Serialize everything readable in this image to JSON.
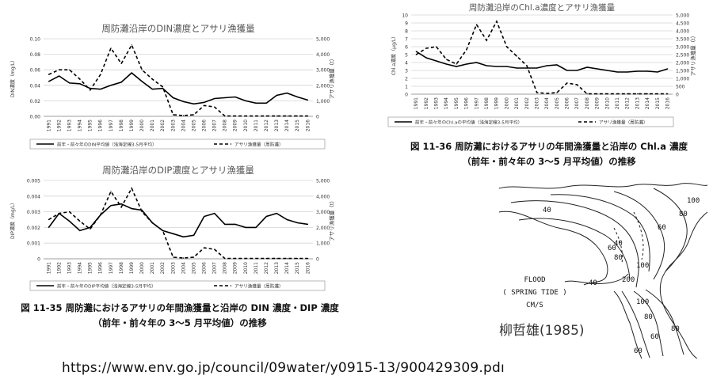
{
  "charts": [
    {
      "id": "din",
      "title": "周防灘沿岸のDIN濃度とアサリ漁獲量",
      "ylabel_left": "DIN濃度（mg/L）",
      "ylabel_right": "アサリ漁獲量（t）",
      "legend_left": "前年・前々年のDIN平均値（浅海定線3-5月平均）",
      "legend_right": "アサリ漁獲量（周防灘）",
      "yticks_left": [
        "0.00",
        "0.02",
        "0.04",
        "0.06",
        "0.08",
        "0.10"
      ],
      "yticks_right": [
        "0",
        "1,000",
        "2,000",
        "3,000",
        "4,000",
        "5,000"
      ]
    },
    {
      "id": "dip",
      "title": "周防灘沿岸のDIP濃度とアサリ漁獲量",
      "ylabel_left": "DIP濃度（mg/L）",
      "ylabel_right": "アサリ漁獲量（t）",
      "legend_left": "前年・前々年のDIP平均値（浅海定線3-5月平均）",
      "legend_right": "アサリ漁獲量（周防灘）",
      "yticks_left": [
        "0",
        "0.001",
        "0.002",
        "0.003",
        "0.004",
        "0.005"
      ],
      "yticks_right": [
        "0",
        "1,000",
        "2,000",
        "3,000",
        "4,000",
        "5,000"
      ]
    },
    {
      "id": "chla",
      "title": "周防灘沿岸のChl.a濃度とアサリ漁獲量",
      "ylabel_left": "Chl.a濃度（μg/L）",
      "ylabel_right": "アサリ漁獲量（t）",
      "legend_left": "前年・前々年のChl.aの平均値（浅海定線3-5月平均）",
      "legend_right": "アサリ漁獲量（周防灘）",
      "yticks_left": [
        "0",
        "1",
        "2",
        "3",
        "4",
        "5",
        "6",
        "7",
        "8",
        "9",
        "10"
      ],
      "yticks_right": [
        "0",
        "500",
        "1,000",
        "1,500",
        "2,000",
        "2,500",
        "3,000",
        "3,500",
        "4,000",
        "4,500",
        "5,000"
      ]
    }
  ],
  "captions": {
    "fig36_line1": "図 11-36  周防灘におけるアサリの年間漁獲量と沿岸の Chl.a 濃度",
    "fig36_line2": "（前年・前々年の 3～5 月平均値）の推移",
    "fig35_line1": "図 11-35  周防灘におけるアサリの年間漁獲量と沿岸の DIN 濃度・DIP 濃度",
    "fig35_line2": "（前年・前々年の 3～5 月平均値）の推移"
  },
  "map": {
    "label_flood": "FLOOD",
    "label_tide": "( SPRING TIDE )",
    "label_unit": "CM/S",
    "contour_labels": [
      "40",
      "60",
      "80",
      "100",
      "200",
      "100",
      "80",
      "60",
      "40",
      "100",
      "80",
      "60",
      "80",
      "60",
      "40"
    ],
    "credit": "柳哲雄(1985)"
  },
  "url": "https://www.env.go.jp/council/09water/y0915-13/900429309.pdı",
  "chart_data": [
    {
      "type": "line",
      "title": "周防灘沿岸のDIN濃度とアサリ漁獲量",
      "x": [
        "1991",
        "1992",
        "1993",
        "1994",
        "1995",
        "1996",
        "1997",
        "1998",
        "1999",
        "2000",
        "2001",
        "2002",
        "2003",
        "2004",
        "2005",
        "2006",
        "2007",
        "2008",
        "2009",
        "2010",
        "2011",
        "2012",
        "2013",
        "2014",
        "2015",
        "2016"
      ],
      "ylim_left": [
        0,
        0.1
      ],
      "ylim_right": [
        0,
        5000
      ],
      "series": [
        {
          "name": "前年・前々年のDIN平均値（浅海定線3-5月平均）",
          "axis": "left",
          "style": "solid",
          "values": [
            0.045,
            0.052,
            0.043,
            0.042,
            0.036,
            0.035,
            0.04,
            0.044,
            0.056,
            0.045,
            0.035,
            0.036,
            0.024,
            0.019,
            0.016,
            0.018,
            0.023,
            0.024,
            0.025,
            0.02,
            0.017,
            0.017,
            0.027,
            0.03,
            0.025,
            0.021
          ]
        },
        {
          "name": "アサリ漁獲量（周防灘）",
          "axis": "right",
          "style": "dashed",
          "values": [
            2700,
            3000,
            3000,
            2400,
            1700,
            2700,
            4400,
            3400,
            4600,
            3000,
            2400,
            1900,
            100,
            50,
            100,
            700,
            600,
            20,
            20,
            20,
            20,
            20,
            20,
            20,
            20,
            20
          ]
        }
      ]
    },
    {
      "type": "line",
      "title": "周防灘沿岸のDIP濃度とアサリ漁獲量",
      "x": [
        "1991",
        "1992",
        "1993",
        "1994",
        "1995",
        "1996",
        "1997",
        "1998",
        "1999",
        "2000",
        "2001",
        "2002",
        "2003",
        "2004",
        "2005",
        "2006",
        "2007",
        "2008",
        "2009",
        "2010",
        "2011",
        "2012",
        "2013",
        "2014",
        "2015",
        "2016"
      ],
      "ylim_left": [
        0,
        0.005
      ],
      "ylim_right": [
        0,
        5000
      ],
      "series": [
        {
          "name": "前年・前々年のDIP平均値（浅海定線3-5月平均）",
          "axis": "left",
          "style": "solid",
          "values": [
            0.002,
            0.0029,
            0.0024,
            0.0018,
            0.002,
            0.0028,
            0.0034,
            0.0035,
            0.0032,
            0.0031,
            0.0023,
            0.0018,
            0.0016,
            0.0014,
            0.0015,
            0.0027,
            0.0029,
            0.0022,
            0.0022,
            0.002,
            0.002,
            0.0027,
            0.0029,
            0.0025,
            0.0023,
            0.0022
          ]
        },
        {
          "name": "アサリ漁獲量（周防灘）",
          "axis": "right",
          "style": "dashed",
          "values": [
            2500,
            2900,
            3000,
            2400,
            1900,
            2800,
            4300,
            3300,
            4500,
            3000,
            2300,
            1800,
            100,
            50,
            100,
            700,
            600,
            20,
            20,
            20,
            20,
            20,
            20,
            20,
            20,
            20
          ]
        }
      ]
    },
    {
      "type": "line",
      "title": "周防灘沿岸のChl.a濃度とアサリ漁獲量",
      "x": [
        "1991",
        "1992",
        "1993",
        "1994",
        "1995",
        "1996",
        "1997",
        "1998",
        "1999",
        "2000",
        "2001",
        "2002",
        "2003",
        "2004",
        "2005",
        "2006",
        "2007",
        "2008",
        "2009",
        "2010",
        "2011",
        "2012",
        "2013",
        "2014",
        "2015",
        "2016"
      ],
      "ylim_left": [
        0,
        10
      ],
      "ylim_right": [
        0,
        5000
      ],
      "series": [
        {
          "name": "前年・前々年のChl.aの平均値（浅海定線3-5月平均）",
          "axis": "left",
          "style": "solid",
          "values": [
            5.4,
            4.6,
            4.2,
            3.8,
            3.5,
            3.8,
            4.0,
            3.6,
            3.5,
            3.5,
            3.3,
            3.3,
            3.3,
            3.6,
            3.7,
            3.0,
            3.0,
            3.4,
            3.2,
            3.0,
            2.8,
            2.8,
            2.9,
            2.9,
            2.8,
            3.2
          ]
        },
        {
          "name": "アサリ漁獲量（周防灘）",
          "axis": "right",
          "style": "dashed",
          "values": [
            2500,
            2900,
            3000,
            2200,
            1900,
            2800,
            4400,
            3400,
            4600,
            3000,
            2400,
            1800,
            100,
            50,
            100,
            700,
            600,
            20,
            20,
            20,
            20,
            20,
            20,
            20,
            20,
            20
          ]
        }
      ]
    }
  ]
}
